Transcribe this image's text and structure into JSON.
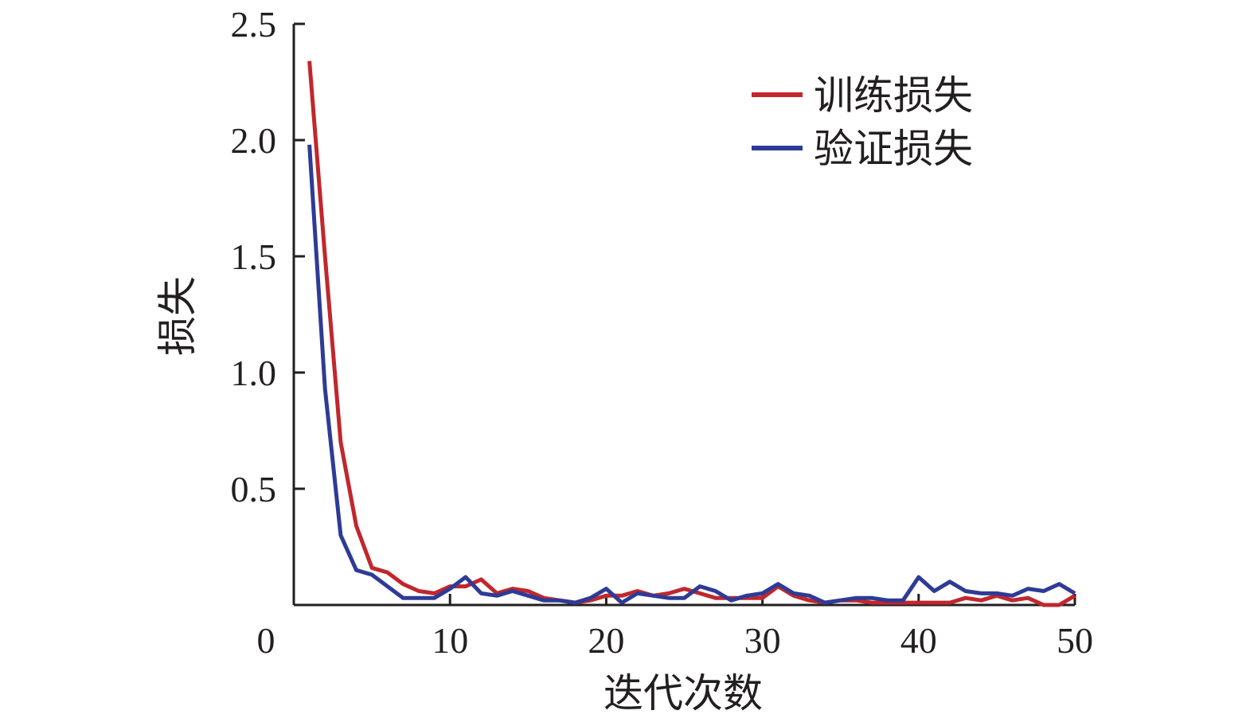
{
  "chart_data": {
    "type": "line",
    "title": "",
    "xlabel": "迭代次数",
    "ylabel": "损失",
    "xlim": [
      0,
      50
    ],
    "ylim": [
      0,
      2.5
    ],
    "x_ticks": [
      "0",
      "10",
      "20",
      "30",
      "40",
      "50"
    ],
    "y_ticks": [
      "0.5",
      "1.0",
      "1.5",
      "2.0",
      "2.5"
    ],
    "x_tick_values": [
      0,
      10,
      20,
      30,
      40,
      50
    ],
    "y_tick_values": [
      0.5,
      1.0,
      1.5,
      2.0,
      2.5
    ],
    "grid": false,
    "legend_position": "top-right",
    "x": [
      1,
      2,
      3,
      4,
      5,
      6,
      7,
      8,
      9,
      10,
      11,
      12,
      13,
      14,
      15,
      16,
      17,
      18,
      19,
      20,
      21,
      22,
      23,
      24,
      25,
      26,
      27,
      28,
      29,
      30,
      31,
      32,
      33,
      34,
      35,
      36,
      37,
      38,
      39,
      40,
      41,
      42,
      43,
      44,
      45,
      46,
      47,
      48,
      49,
      50
    ],
    "series": [
      {
        "name": "训练损失",
        "color": "#c1272d",
        "values": [
          2.34,
          1.5,
          0.7,
          0.34,
          0.16,
          0.14,
          0.09,
          0.06,
          0.05,
          0.08,
          0.08,
          0.11,
          0.05,
          0.07,
          0.06,
          0.03,
          0.02,
          0.01,
          0.02,
          0.04,
          0.04,
          0.06,
          0.04,
          0.05,
          0.07,
          0.05,
          0.03,
          0.03,
          0.03,
          0.03,
          0.08,
          0.04,
          0.02,
          0.01,
          0.02,
          0.02,
          0.01,
          0.01,
          0.01,
          0.01,
          0.01,
          0.01,
          0.03,
          0.02,
          0.04,
          0.02,
          0.03,
          0.0,
          0.0,
          0.04
        ]
      },
      {
        "name": "验证损失",
        "color": "#2e3b96",
        "values": [
          1.98,
          0.93,
          0.3,
          0.15,
          0.13,
          0.08,
          0.03,
          0.03,
          0.03,
          0.07,
          0.12,
          0.05,
          0.04,
          0.06,
          0.04,
          0.02,
          0.02,
          0.01,
          0.03,
          0.07,
          0.01,
          0.05,
          0.04,
          0.03,
          0.03,
          0.08,
          0.06,
          0.02,
          0.04,
          0.05,
          0.09,
          0.05,
          0.04,
          0.01,
          0.02,
          0.03,
          0.03,
          0.02,
          0.02,
          0.12,
          0.06,
          0.1,
          0.06,
          0.05,
          0.05,
          0.04,
          0.07,
          0.06,
          0.09,
          0.05
        ]
      }
    ]
  }
}
